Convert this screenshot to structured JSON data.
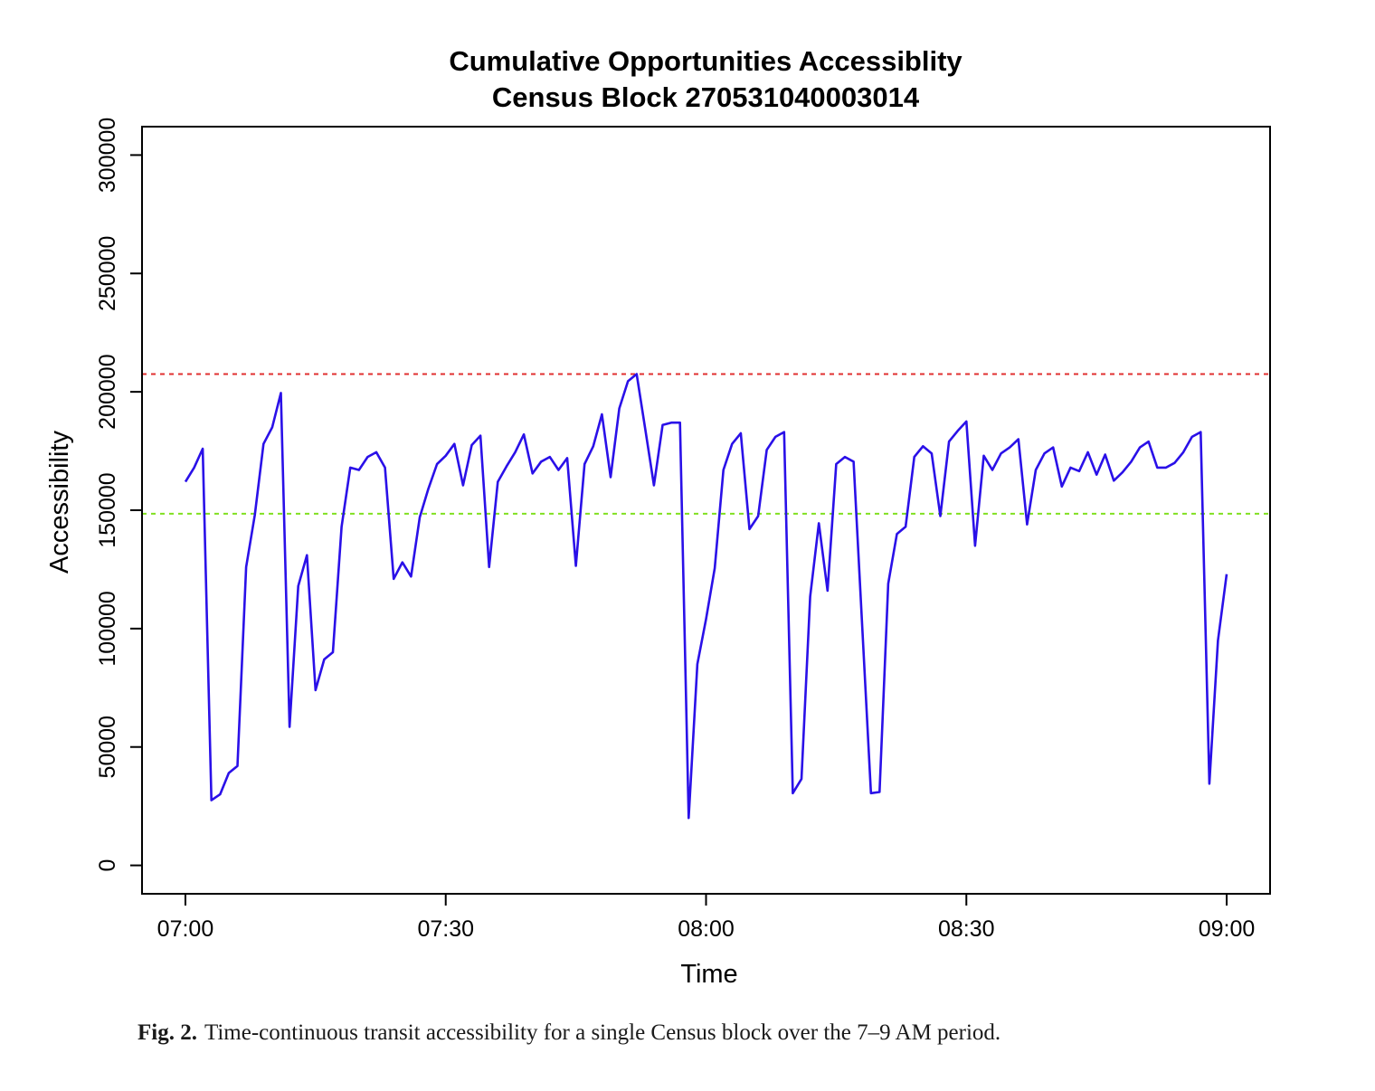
{
  "chart_data": {
    "type": "line",
    "title": "Cumulative Opportunities Accessiblity",
    "subtitle": "Census Block 270531040003014",
    "xlabel": "Time",
    "ylabel": "Accessibility",
    "x_ticks": [
      "07:00",
      "07:30",
      "08:00",
      "08:30",
      "09:00"
    ],
    "y_ticks": [
      "0",
      "50000",
      "100000",
      "150000",
      "200000",
      "250000",
      "300000"
    ],
    "x_range_minutes": [
      -5,
      125
    ],
    "ylim": [
      -12000,
      312000
    ],
    "grid": false,
    "legend": "none",
    "reference_lines": [
      {
        "value": 207500,
        "color": "#e03030",
        "style": "dashed"
      },
      {
        "value": 148500,
        "color": "#80e020",
        "style": "dashed"
      }
    ],
    "series": [
      {
        "color": "#2a10e8",
        "x": [
          0,
          1,
          2,
          3,
          4,
          5,
          6,
          7,
          8,
          9,
          10,
          11,
          12,
          13,
          14,
          15,
          16,
          17,
          18,
          19,
          20,
          21,
          22,
          23,
          24,
          25,
          26,
          27,
          28,
          29,
          30,
          31,
          32,
          33,
          34,
          35,
          36,
          37,
          38,
          39,
          40,
          41,
          42,
          43,
          44,
          45,
          46,
          47,
          48,
          49,
          50,
          51,
          52,
          53,
          54,
          55,
          56,
          57,
          58,
          59,
          60,
          61,
          62,
          63,
          64,
          65,
          66,
          67,
          68,
          69,
          70,
          71,
          72,
          73,
          74,
          75,
          76,
          77,
          78,
          79,
          80,
          81,
          82,
          83,
          84,
          85,
          86,
          87,
          88,
          89,
          90,
          91,
          92,
          93,
          94,
          95,
          96,
          97,
          98,
          99,
          100,
          101,
          102,
          103,
          104,
          105,
          106,
          107,
          108,
          109,
          110,
          111,
          112,
          113,
          114,
          115,
          116,
          117,
          118,
          119,
          120
        ],
        "values": [
          162000,
          168000,
          176000,
          27500,
          30000,
          39000,
          42000,
          126000,
          148000,
          178000,
          185000,
          199500,
          58500,
          118000,
          131000,
          74000,
          87000,
          90000,
          143000,
          168000,
          167000,
          172500,
          174500,
          168000,
          121000,
          128000,
          122000,
          147000,
          159000,
          169500,
          173000,
          178000,
          160500,
          177500,
          181500,
          126000,
          162000,
          168500,
          174500,
          182000,
          165500,
          170500,
          172500,
          167000,
          172000,
          126500,
          169500,
          177000,
          190500,
          164000,
          193000,
          204500,
          207500,
          184000,
          160500,
          186000,
          187000,
          187000,
          20000,
          85000,
          104000,
          125500,
          167000,
          178000,
          182500,
          142000,
          147500,
          175500,
          181000,
          183000,
          30500,
          36500,
          113500,
          144500,
          116000,
          169500,
          172500,
          170500,
          100500,
          30500,
          31000,
          119000,
          140000,
          143000,
          172500,
          177000,
          174000,
          147500,
          179000,
          183500,
          187500,
          135000,
          173000,
          167000,
          174000,
          176500,
          180000,
          144000,
          167000,
          174000,
          176500,
          160000,
          168000,
          166500,
          174500,
          165000,
          173500,
          162500,
          166000,
          170500,
          176500,
          179000,
          168000,
          168000,
          170000,
          174500,
          181000,
          183000,
          34500,
          95000,
          123000
        ]
      }
    ]
  },
  "caption": {
    "label": "Fig. 2.",
    "text": "Time-continuous transit accessibility for a single Census block over the 7–9 AM period."
  }
}
